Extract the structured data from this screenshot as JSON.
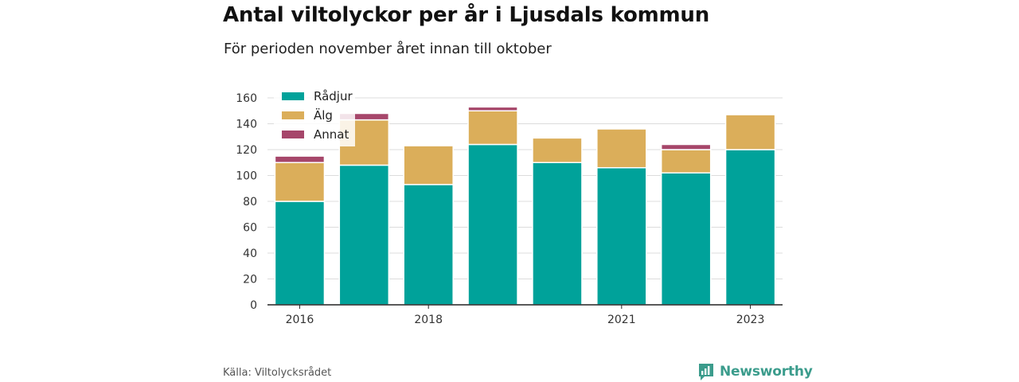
{
  "title": "Antal viltolyckor per år i Ljusdals kommun",
  "subtitle": "För perioden november året innan till oktober",
  "source": "Källa: Viltolycksrådet",
  "brand": "Newsworthy",
  "colors": {
    "Rådjur": "#00a29a",
    "Älg": "#dbae5a",
    "Annat": "#a6466a",
    "brand": "#3b9c8c"
  },
  "chart_data": {
    "type": "bar",
    "stacked": true,
    "categories": [
      "2016",
      "2017",
      "2018",
      "2019",
      "2020",
      "2021",
      "2022",
      "2023"
    ],
    "x_tick_labels": [
      "2016",
      "",
      "2018",
      "",
      "",
      "2021",
      "",
      "2023"
    ],
    "series": [
      {
        "name": "Rådjur",
        "values": [
          80,
          108,
          93,
          124,
          110,
          106,
          102,
          120
        ]
      },
      {
        "name": "Älg",
        "values": [
          30,
          35,
          30,
          26,
          19,
          30,
          18,
          27
        ]
      },
      {
        "name": "Annat",
        "values": [
          5,
          5,
          0,
          3,
          0,
          0,
          4,
          0
        ]
      }
    ],
    "ylim": [
      0,
      160
    ],
    "yticks": [
      0,
      20,
      40,
      60,
      80,
      100,
      120,
      140,
      160
    ],
    "grid": true,
    "legend_position": "top-left"
  }
}
